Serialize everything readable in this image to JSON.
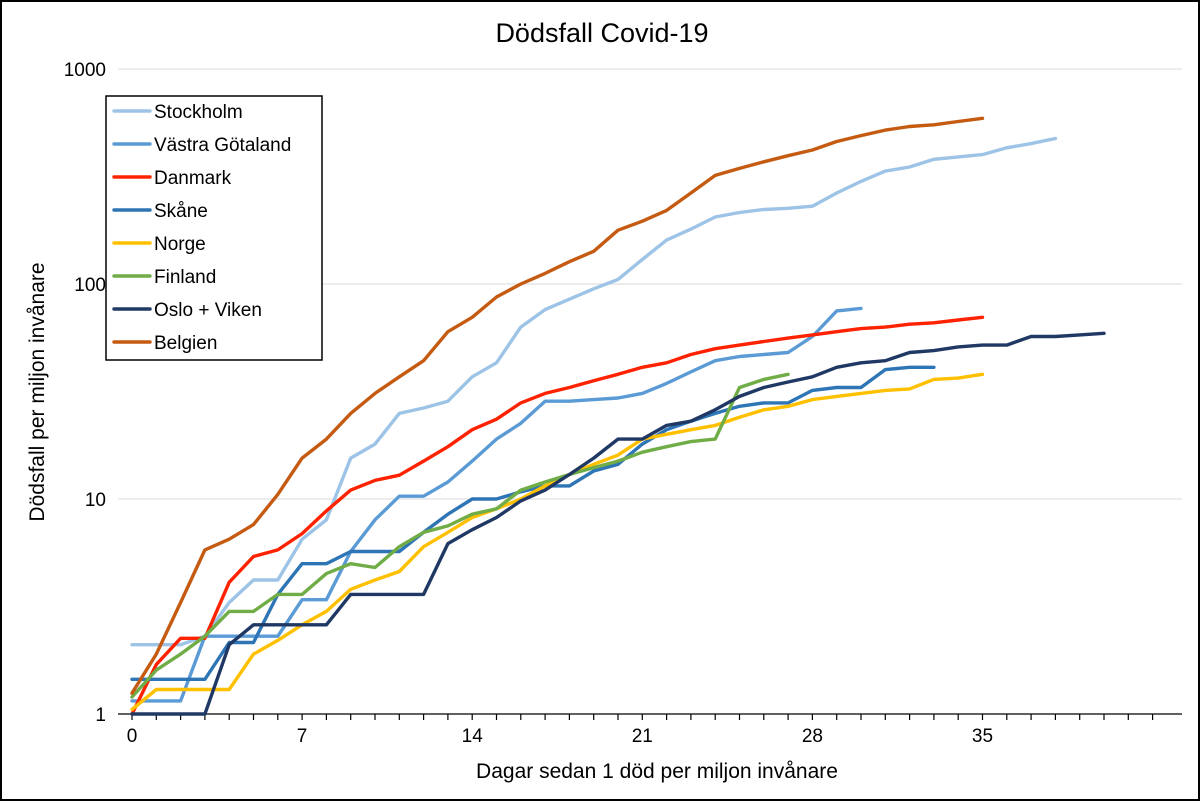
{
  "chart_data": {
    "type": "line",
    "title": "Dödsfall Covid-19",
    "xlabel": "Dagar sedan 1 död per miljon invånare",
    "ylabel": "Dödsfall per miljon invånare",
    "yscale": "log",
    "ylim": [
      1,
      1000
    ],
    "xlim": [
      0,
      42
    ],
    "xticks": [
      0,
      7,
      14,
      21,
      28,
      35
    ],
    "xtick_labels": [
      "0",
      "7",
      "14",
      "21",
      "28",
      "35"
    ],
    "yticks": [
      1,
      10,
      100,
      1000
    ],
    "ytick_labels": [
      "1",
      "10",
      "100",
      "1000"
    ],
    "grid": "horizontal",
    "legend_position": "top-left",
    "series": [
      {
        "name": "Stockholm",
        "color": "#9dc3e6",
        "values": [
          2.1,
          2.1,
          2.1,
          2.3,
          3.3,
          4.2,
          4.2,
          6.5,
          8,
          15.5,
          18,
          25,
          26.5,
          28.5,
          37,
          43,
          63,
          76,
          85,
          95,
          105,
          130,
          160,
          180,
          205,
          215,
          222,
          225,
          230,
          265,
          300,
          335,
          350,
          380,
          390,
          400,
          430,
          450,
          475
        ]
      },
      {
        "name": "Västra Götaland",
        "color": "#5b9bd5",
        "values": [
          1.15,
          1.15,
          1.15,
          2.3,
          2.3,
          2.3,
          2.3,
          3.4,
          3.4,
          5.7,
          8,
          10.3,
          10.3,
          12,
          15,
          19,
          22.5,
          28.5,
          28.5,
          29,
          29.5,
          31,
          34.5,
          39,
          44,
          46,
          47,
          48,
          57,
          75,
          77
        ]
      },
      {
        "name": "Danmark",
        "color": "#ff2200",
        "values": [
          1.0,
          1.7,
          2.25,
          2.25,
          4.1,
          5.4,
          5.8,
          6.9,
          8.8,
          11,
          12.2,
          12.9,
          15,
          17.5,
          21,
          23.5,
          28,
          31,
          33,
          35.5,
          38,
          41,
          43,
          47,
          50,
          52,
          54,
          56,
          58,
          60,
          62,
          63,
          65,
          66,
          68,
          70
        ]
      },
      {
        "name": "Skåne",
        "color": "#2e75b6",
        "values": [
          1.45,
          1.45,
          1.45,
          1.45,
          2.15,
          2.15,
          3.6,
          5,
          5,
          5.7,
          5.7,
          5.7,
          7,
          8.5,
          10,
          10,
          10.8,
          11.5,
          11.5,
          13.5,
          14.5,
          18,
          21,
          23,
          25,
          27,
          28,
          28,
          32,
          33,
          33,
          40,
          41,
          41
        ]
      },
      {
        "name": "Norge",
        "color": "#ffc000",
        "values": [
          1.05,
          1.3,
          1.3,
          1.3,
          1.3,
          1.9,
          2.2,
          2.6,
          3.0,
          3.8,
          4.2,
          4.6,
          6.0,
          7.0,
          8.2,
          9.0,
          10.0,
          11.5,
          13,
          14.5,
          16,
          19,
          20,
          21,
          22,
          24,
          26,
          27,
          29,
          30,
          31,
          32,
          32.5,
          36,
          36.5,
          38
        ]
      },
      {
        "name": "Finland",
        "color": "#70ad47",
        "values": [
          1.2,
          1.6,
          1.9,
          2.3,
          3.0,
          3.0,
          3.6,
          3.6,
          4.5,
          5.0,
          4.8,
          6.0,
          7.0,
          7.5,
          8.5,
          9.0,
          11.0,
          12.0,
          13.0,
          14.0,
          15.0,
          16.5,
          17.5,
          18.5,
          19.0,
          33,
          36,
          38
        ]
      },
      {
        "name": "Oslo + Viken",
        "color": "#203864",
        "values": [
          1.0,
          1.0,
          1.0,
          1.0,
          2.1,
          2.6,
          2.6,
          2.6,
          2.6,
          3.6,
          3.6,
          3.6,
          3.6,
          6.2,
          7.2,
          8.2,
          9.8,
          11,
          13,
          15.5,
          19,
          19,
          22,
          23,
          26,
          30,
          33,
          35,
          37,
          41,
          43,
          44,
          48,
          49,
          51,
          52,
          52,
          57,
          57,
          58,
          59
        ]
      },
      {
        "name": "Belgien",
        "color": "#c55a11",
        "values": [
          1.25,
          1.9,
          3.3,
          5.8,
          6.5,
          7.6,
          10.5,
          15.5,
          19,
          25,
          31,
          37,
          44,
          60,
          70,
          87,
          100,
          112,
          127,
          142,
          178,
          196,
          220,
          265,
          320,
          345,
          370,
          395,
          420,
          460,
          490,
          520,
          540,
          550,
          570,
          590
        ]
      }
    ]
  }
}
